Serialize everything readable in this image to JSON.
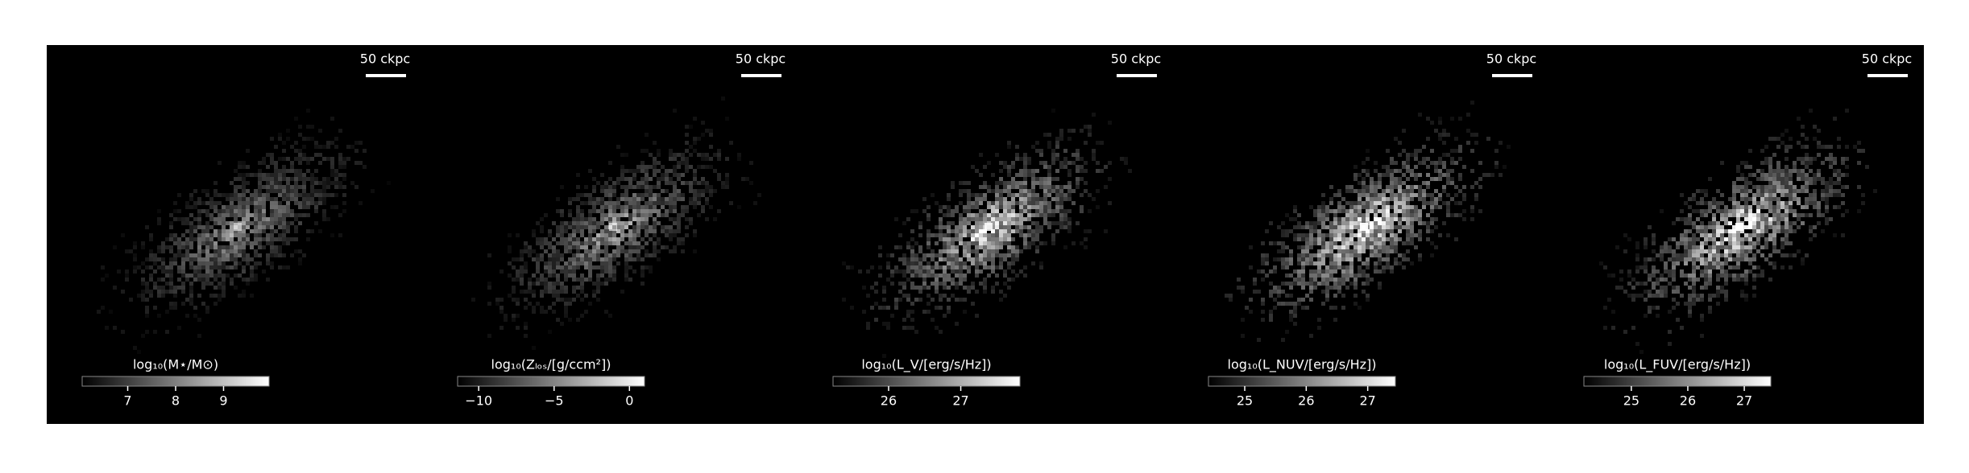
{
  "chart_data": [
    {
      "type": "image-map",
      "scale_label": "50 ckpc",
      "colorbar_label": "log₁₀(M⋆/M⊙)",
      "clim": [
        6.05,
        9.95
      ],
      "cticks": [
        7,
        8,
        9
      ],
      "contrast": 0.55
    },
    {
      "type": "image-map",
      "scale_label": "50 ckpc",
      "colorbar_label": "log₁₀(Zₗₒₛ/[g/ccm²])",
      "clim": [
        -11.4,
        1
      ],
      "cticks": [
        {
          "value": -10,
          "label": "−10"
        },
        {
          "value": -5,
          "label": "−5"
        },
        0
      ],
      "contrast": 0.6
    },
    {
      "type": "image-map",
      "scale_label": "50 ckpc",
      "colorbar_label": "log₁₀(L_V/[erg/s/Hz])",
      "clim": [
        25.23,
        27.82
      ],
      "cticks": [
        26,
        27
      ],
      "contrast": 0.85
    },
    {
      "type": "image-map",
      "scale_label": "50 ckpc",
      "colorbar_label": "log₁₀(L_NUV/[erg/s/Hz])",
      "clim": [
        24.41,
        27.45
      ],
      "cticks": [
        25,
        26,
        27
      ],
      "contrast": 0.95
    },
    {
      "type": "image-map",
      "scale_label": "50 ckpc",
      "colorbar_label": "log₁₀(L_FUV/[erg/s/Hz])",
      "clim": [
        24.16,
        27.47
      ],
      "cticks": [
        25,
        26,
        27
      ],
      "contrast": 0.95
    }
  ]
}
